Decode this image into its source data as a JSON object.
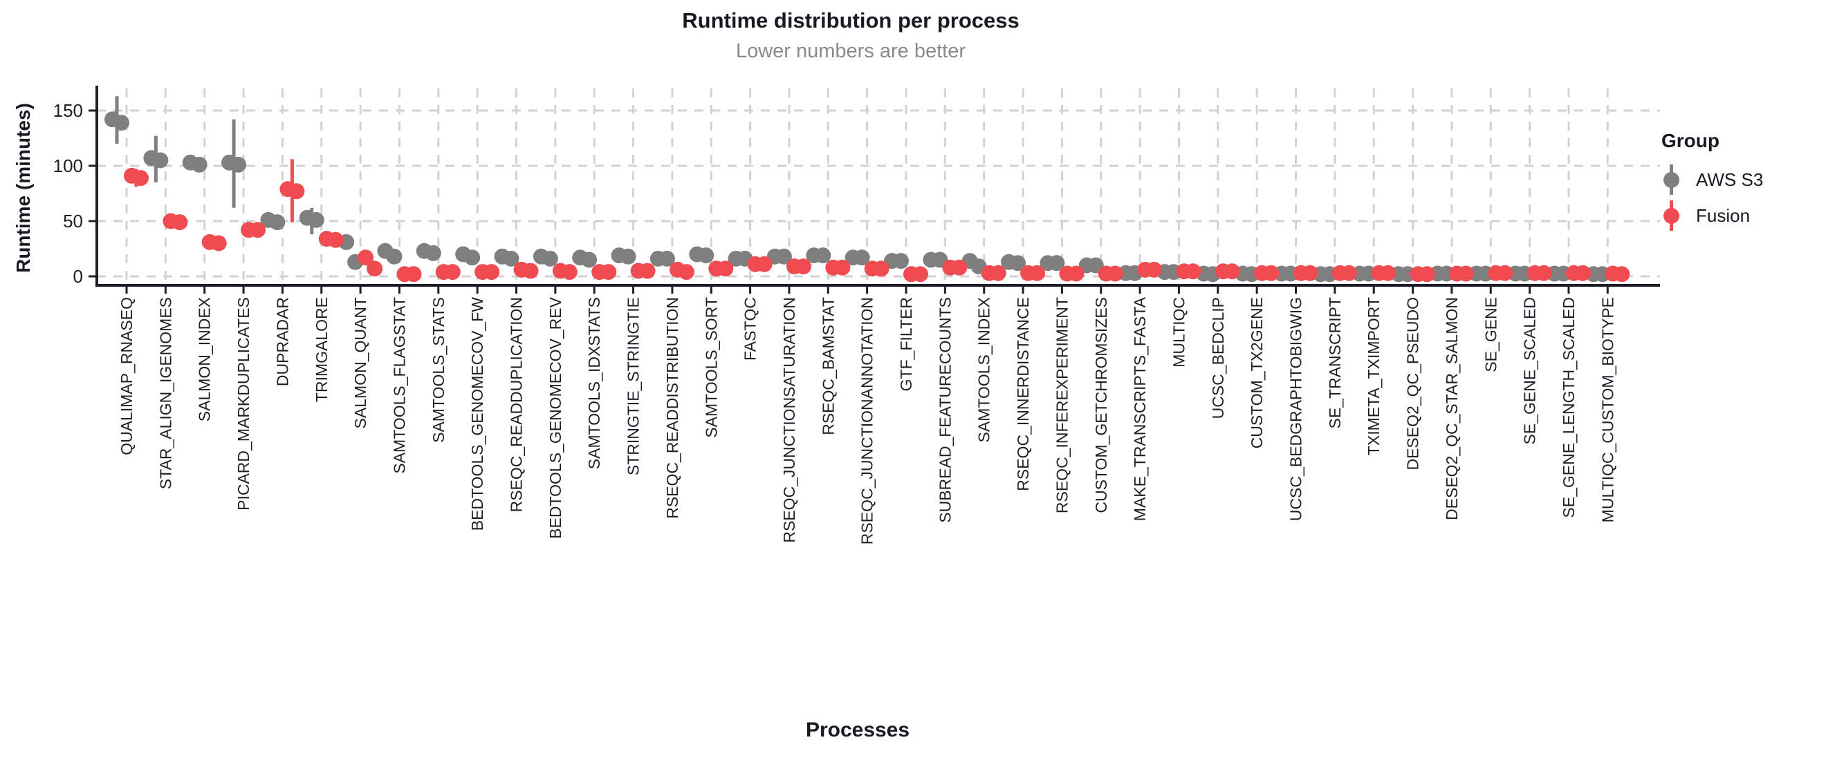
{
  "chart_data": {
    "type": "scatter",
    "style": "pointrange-dotplot",
    "title": "Runtime distribution per process",
    "subtitle": "Lower numbers are better",
    "xlabel": "Processes",
    "ylabel": "Runtime (minutes)",
    "ylim": [
      -8,
      170
    ],
    "yticks": [
      0,
      50,
      100,
      150
    ],
    "grid": "dashed",
    "colors": {
      "aws": "#7F7F7F",
      "fusion": "#F04B50",
      "gridline": "#d2d2d2",
      "axis": "#1e1e28",
      "title_text": "#191924",
      "subtitle_text": "#8a8a8a"
    },
    "legend": {
      "title": "Group",
      "position": "right",
      "entries": [
        {
          "name": "AWS S3",
          "color": "#7F7F7F"
        },
        {
          "name": "Fusion",
          "color": "#F04B50"
        }
      ]
    },
    "categories": [
      "QUALIMAP_RNASEQ",
      "STAR_ALIGN_IGENOMES",
      "SALMON_INDEX",
      "PICARD_MARKDUPLICATES",
      "DUPRADAR",
      "TRIMGALORE",
      "SALMON_QUANT",
      "SAMTOOLS_FLAGSTAT",
      "SAMTOOLS_STATS",
      "BEDTOOLS_GENOMECOV_FW",
      "RSEQC_READDUPLICATION",
      "BEDTOOLS_GENOMECOV_REV",
      "SAMTOOLS_IDXSTATS",
      "STRINGTIE_STRINGTIE",
      "RSEQC_READDISTRIBUTION",
      "SAMTOOLS_SORT",
      "FASTQC",
      "RSEQC_JUNCTIONSATURATION",
      "RSEQC_BAMSTAT",
      "RSEQC_JUNCTIONANNOTATION",
      "GTF_FILTER",
      "SUBREAD_FEATURECOUNTS",
      "SAMTOOLS_INDEX",
      "RSEQC_INNERDISTANCE",
      "RSEQC_INFEREXPERIMENT",
      "CUSTOM_GETCHROMSIZES",
      "MAKE_TRANSCRIPTS_FASTA",
      "MULTIQC",
      "UCSC_BEDCLIP",
      "CUSTOM_TX2GENE",
      "UCSC_BEDGRAPHTOBIGWIG",
      "SE_TRANSCRIPT",
      "TXIMETA_TXIMPORT",
      "DESEQ2_QC_PSEUDO",
      "DESEQ2_QC_STAR_SALMON",
      "SE_GENE",
      "SE_GENE_SCALED",
      "SE_GENE_LENGTH_SCALED",
      "MULTIQC_CUSTOM_BIOTYPE"
    ],
    "series": [
      {
        "name": "AWS S3",
        "color": "#7F7F7F",
        "data": [
          {
            "points": [
              142,
              139
            ],
            "range": [
              120,
              163
            ]
          },
          {
            "points": [
              107,
              105
            ],
            "range": [
              85,
              127
            ]
          },
          {
            "points": [
              103,
              101
            ],
            "range": null
          },
          {
            "points": [
              103,
              101
            ],
            "range": [
              62,
              142
            ]
          },
          {
            "points": [
              51,
              49
            ],
            "range": [
              44,
              56
            ]
          },
          {
            "points": [
              53,
              51
            ],
            "range": [
              38,
              62
            ]
          },
          {
            "points": [
              31,
              13
            ],
            "range": null
          },
          {
            "points": [
              23,
              18
            ],
            "range": null
          },
          {
            "points": [
              23,
              21
            ],
            "range": null
          },
          {
            "points": [
              20,
              17
            ],
            "range": null
          },
          {
            "points": [
              18,
              16
            ],
            "range": null
          },
          {
            "points": [
              18,
              16
            ],
            "range": null
          },
          {
            "points": [
              17,
              15
            ],
            "range": null
          },
          {
            "points": [
              19,
              18
            ],
            "range": null
          },
          {
            "points": [
              16,
              16
            ],
            "range": null
          },
          {
            "points": [
              20,
              19
            ],
            "range": [
              15,
              24
            ]
          },
          {
            "points": [
              16,
              16
            ],
            "range": null
          },
          {
            "points": [
              18,
              18
            ],
            "range": null
          },
          {
            "points": [
              19,
              19
            ],
            "range": null
          },
          {
            "points": [
              17,
              17
            ],
            "range": null
          },
          {
            "points": [
              14,
              14
            ],
            "range": null
          },
          {
            "points": [
              15,
              15
            ],
            "range": null
          },
          {
            "points": [
              14,
              9
            ],
            "range": null
          },
          {
            "points": [
              13,
              12
            ],
            "range": null
          },
          {
            "points": [
              12,
              12
            ],
            "range": null
          },
          {
            "points": [
              10,
              10
            ],
            "range": null
          },
          {
            "points": [
              3,
              3
            ],
            "range": null
          },
          {
            "points": [
              4,
              4
            ],
            "range": null
          },
          {
            "points": [
              2.5,
              2
            ],
            "range": null
          },
          {
            "points": [
              2.5,
              2
            ],
            "range": null
          },
          {
            "points": [
              2.5,
              2.5
            ],
            "range": null
          },
          {
            "points": [
              2,
              2
            ],
            "range": null
          },
          {
            "points": [
              2.5,
              2.5
            ],
            "range": null
          },
          {
            "points": [
              2,
              2
            ],
            "range": null
          },
          {
            "points": [
              2.5,
              2.5
            ],
            "range": null
          },
          {
            "points": [
              2.5,
              2.5
            ],
            "range": null
          },
          {
            "points": [
              2.5,
              2.5
            ],
            "range": null
          },
          {
            "points": [
              2.5,
              2.5
            ],
            "range": null
          },
          {
            "points": [
              2,
              2
            ],
            "range": null
          }
        ]
      },
      {
        "name": "Fusion",
        "color": "#F04B50",
        "data": [
          {
            "points": [
              91,
              89
            ],
            "range": [
              81,
              97
            ]
          },
          {
            "points": [
              50,
              49
            ],
            "range": null
          },
          {
            "points": [
              31,
              30
            ],
            "range": null
          },
          {
            "points": [
              42,
              42
            ],
            "range": null
          },
          {
            "points": [
              79,
              77
            ],
            "range": [
              49,
              106
            ]
          },
          {
            "points": [
              34,
              33
            ],
            "range": null
          },
          {
            "points": [
              17,
              7
            ],
            "range": null
          },
          {
            "points": [
              2,
              2
            ],
            "range": null
          },
          {
            "points": [
              4,
              4
            ],
            "range": null
          },
          {
            "points": [
              4,
              4
            ],
            "range": null
          },
          {
            "points": [
              6,
              5
            ],
            "range": null
          },
          {
            "points": [
              5,
              4
            ],
            "range": null
          },
          {
            "points": [
              4,
              4
            ],
            "range": null
          },
          {
            "points": [
              5,
              5
            ],
            "range": null
          },
          {
            "points": [
              6,
              4
            ],
            "range": null
          },
          {
            "points": [
              7,
              7
            ],
            "range": null
          },
          {
            "points": [
              11,
              11
            ],
            "range": null
          },
          {
            "points": [
              9,
              9
            ],
            "range": null
          },
          {
            "points": [
              8,
              8
            ],
            "range": null
          },
          {
            "points": [
              7,
              7
            ],
            "range": null
          },
          {
            "points": [
              2,
              2
            ],
            "range": null
          },
          {
            "points": [
              8,
              8
            ],
            "range": null
          },
          {
            "points": [
              3,
              3
            ],
            "range": null
          },
          {
            "points": [
              3,
              3
            ],
            "range": null
          },
          {
            "points": [
              2.5,
              2.5
            ],
            "range": null
          },
          {
            "points": [
              2.5,
              2.5
            ],
            "range": null
          },
          {
            "points": [
              6,
              6
            ],
            "range": null
          },
          {
            "points": [
              4.5,
              4.5
            ],
            "range": null
          },
          {
            "points": [
              4.5,
              4.5
            ],
            "range": null
          },
          {
            "points": [
              3,
              3
            ],
            "range": null
          },
          {
            "points": [
              3,
              3
            ],
            "range": null
          },
          {
            "points": [
              3,
              3
            ],
            "range": null
          },
          {
            "points": [
              3,
              3
            ],
            "range": null
          },
          {
            "points": [
              2,
              2
            ],
            "range": null
          },
          {
            "points": [
              2.5,
              2.5
            ],
            "range": null
          },
          {
            "points": [
              3,
              3
            ],
            "range": null
          },
          {
            "points": [
              3,
              3
            ],
            "range": null
          },
          {
            "points": [
              3,
              3
            ],
            "range": null
          },
          {
            "points": [
              2.5,
              2
            ],
            "range": null
          }
        ]
      }
    ]
  }
}
